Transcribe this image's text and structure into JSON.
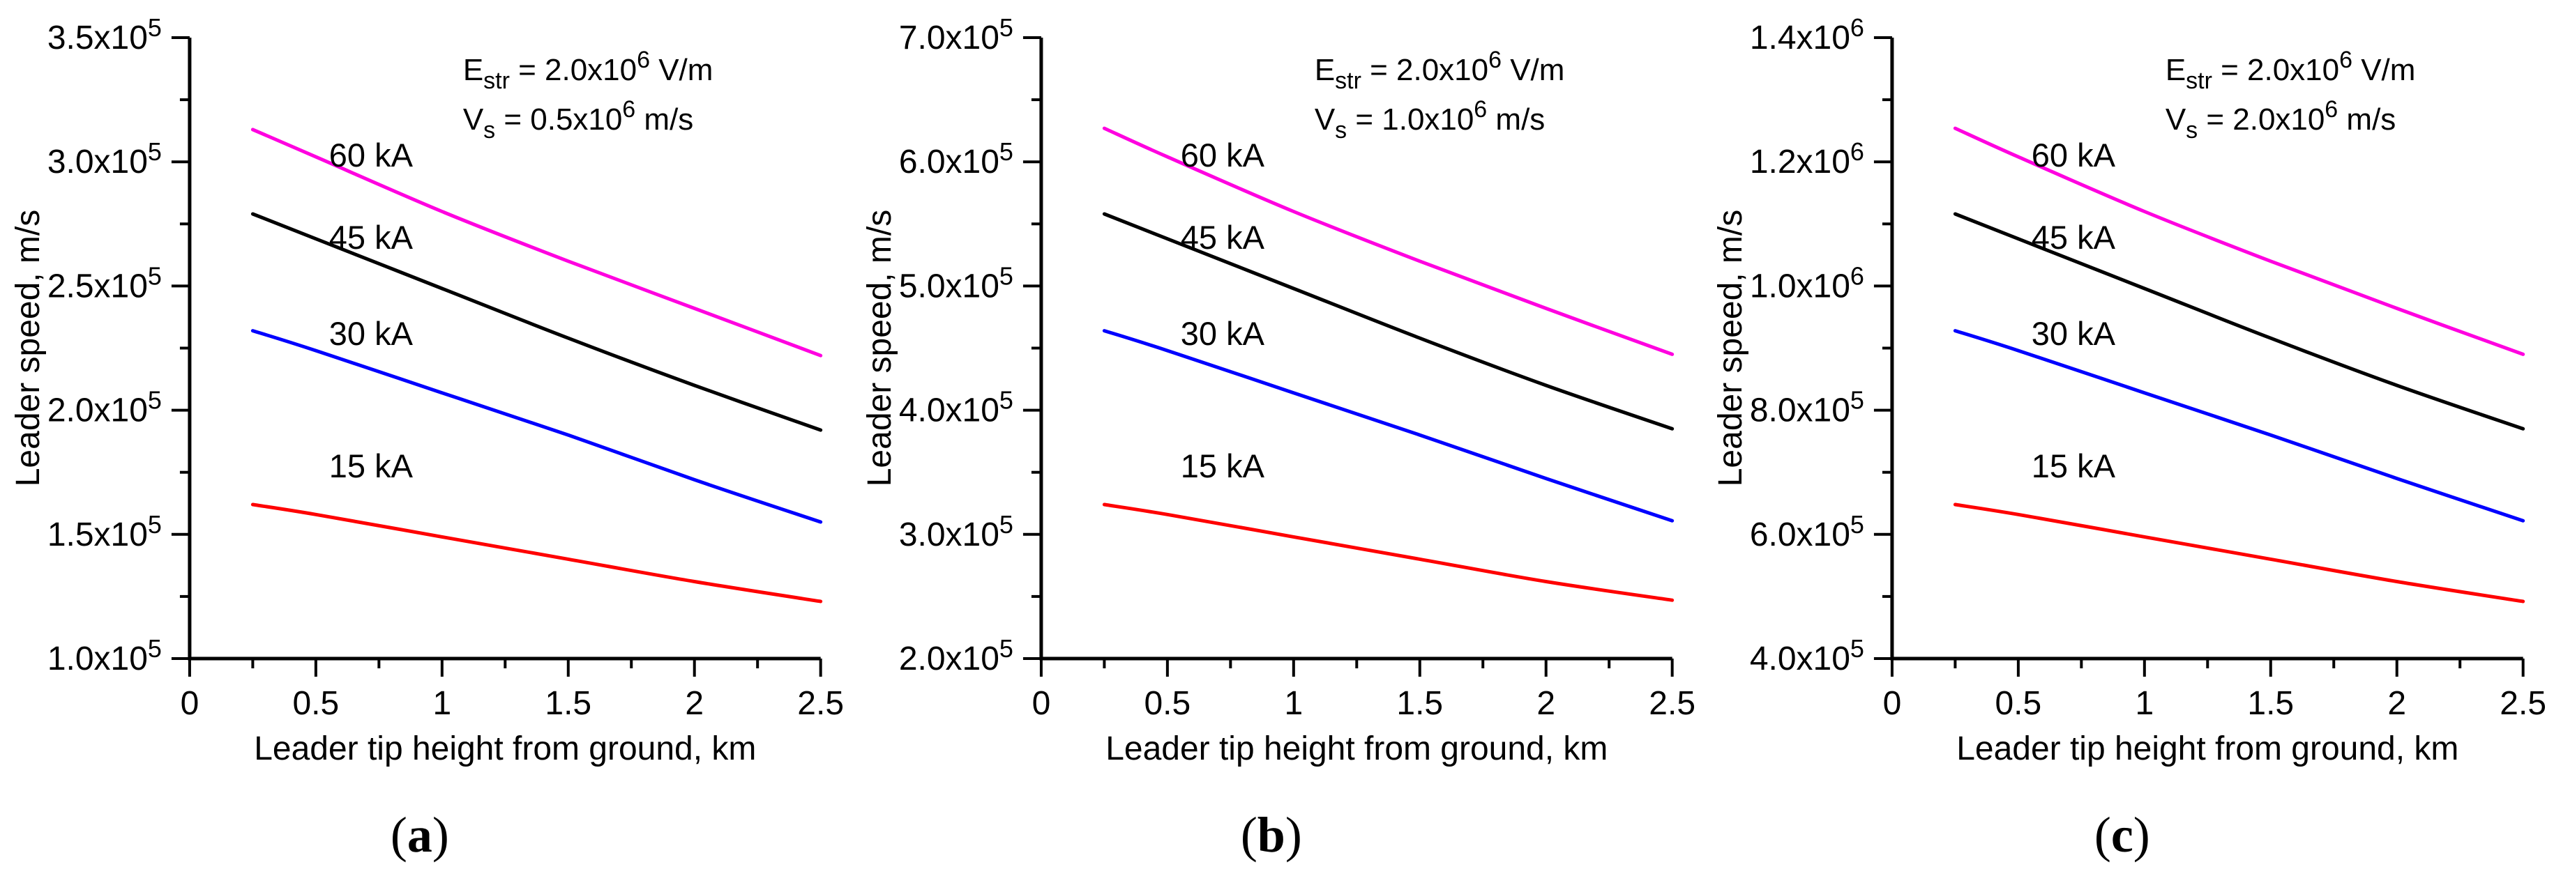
{
  "figure": {
    "background": "#ffffff",
    "text_color": "#000000"
  },
  "chart_data": [
    {
      "type": "line",
      "panel_label": "(a)",
      "xlabel": "Leader tip height from ground, km",
      "ylabel": "Leader speed, m/s",
      "xlim": [
        0,
        2.5
      ],
      "ylim": [
        100000,
        350000
      ],
      "grid": false,
      "legend_position": "inline-curve-labels",
      "xticks": [
        {
          "v": 0,
          "label": "0"
        },
        {
          "v": 0.5,
          "label": "0.5"
        },
        {
          "v": 1,
          "label": "1"
        },
        {
          "v": 1.5,
          "label": "1.5"
        },
        {
          "v": 2,
          "label": "2"
        },
        {
          "v": 2.5,
          "label": "2.5"
        }
      ],
      "yticks": [
        {
          "v": 350000,
          "label": "3.5x10^{5}"
        },
        {
          "v": 300000,
          "label": "3.0x10^{5}"
        },
        {
          "v": 250000,
          "label": "2.5x10^{5}"
        },
        {
          "v": 200000,
          "label": "2.0x10^{5}"
        },
        {
          "v": 150000,
          "label": "1.5x10^{5}"
        },
        {
          "v": 100000,
          "label": "1.0x10^{5}"
        }
      ],
      "annotation": [
        "E_{str} = 2.0x10^{6} V/m",
        "V_{s} = 0.5x10^{6} m/s"
      ],
      "x": [
        0.25,
        0.5,
        1.0,
        1.5,
        2.0,
        2.5
      ],
      "series": [
        {
          "name": "60 kA",
          "color": "#FF00E0",
          "values": [
            313000,
            302000,
            280000,
            260000,
            241000,
            222000
          ]
        },
        {
          "name": "45 kA",
          "color": "#000000",
          "values": [
            279000,
            269000,
            249000,
            229000,
            210000,
            192000
          ]
        },
        {
          "name": "30 kA",
          "color": "#0000FF",
          "values": [
            232000,
            224000,
            207000,
            190000,
            172000,
            155000
          ]
        },
        {
          "name": "15 kA",
          "color": "#FF0000",
          "values": [
            162000,
            158000,
            149000,
            140000,
            131000,
            123000
          ]
        }
      ]
    },
    {
      "type": "line",
      "panel_label": "(b)",
      "xlabel": "Leader tip height from ground, km",
      "ylabel": "Leader speed, m/s",
      "xlim": [
        0,
        2.5
      ],
      "ylim": [
        200000,
        700000
      ],
      "grid": false,
      "legend_position": "inline-curve-labels",
      "xticks": [
        {
          "v": 0,
          "label": "0"
        },
        {
          "v": 0.5,
          "label": "0.5"
        },
        {
          "v": 1,
          "label": "1"
        },
        {
          "v": 1.5,
          "label": "1.5"
        },
        {
          "v": 2,
          "label": "2"
        },
        {
          "v": 2.5,
          "label": "2.5"
        }
      ],
      "yticks": [
        {
          "v": 700000,
          "label": "7.0x10^{5}"
        },
        {
          "v": 600000,
          "label": "6.0x10^{5}"
        },
        {
          "v": 500000,
          "label": "5.0x10^{5}"
        },
        {
          "v": 400000,
          "label": "4.0x10^{5}"
        },
        {
          "v": 300000,
          "label": "3.0x10^{5}"
        },
        {
          "v": 200000,
          "label": "2.0x10^{5}"
        }
      ],
      "annotation": [
        "E_{str} = 2.0x10^{6} V/m",
        "V_{s} = 1.0x10^{6} m/s"
      ],
      "x": [
        0.25,
        0.5,
        1.0,
        1.5,
        2.0,
        2.5
      ],
      "series": [
        {
          "name": "60 kA",
          "color": "#FF00E0",
          "values": [
            627000,
            604000,
            560000,
            520000,
            482000,
            445000
          ]
        },
        {
          "name": "45 kA",
          "color": "#000000",
          "values": [
            558000,
            538000,
            498000,
            458000,
            420000,
            385000
          ]
        },
        {
          "name": "30 kA",
          "color": "#0000FF",
          "values": [
            464000,
            448000,
            414000,
            380000,
            345000,
            311000
          ]
        },
        {
          "name": "15 kA",
          "color": "#FF0000",
          "values": [
            324000,
            316000,
            298000,
            280000,
            262000,
            247000
          ]
        }
      ]
    },
    {
      "type": "line",
      "panel_label": "(c)",
      "xlabel": "Leader tip height from ground, km",
      "ylabel": "Leader speed, m/s",
      "xlim": [
        0,
        2.5
      ],
      "ylim": [
        400000,
        1400000
      ],
      "grid": false,
      "legend_position": "inline-curve-labels",
      "xticks": [
        {
          "v": 0,
          "label": "0"
        },
        {
          "v": 0.5,
          "label": "0.5"
        },
        {
          "v": 1,
          "label": "1"
        },
        {
          "v": 1.5,
          "label": "1.5"
        },
        {
          "v": 2,
          "label": "2"
        },
        {
          "v": 2.5,
          "label": "2.5"
        }
      ],
      "yticks": [
        {
          "v": 1400000,
          "label": "1.4x10^{6}"
        },
        {
          "v": 1200000,
          "label": "1.2x10^{6}"
        },
        {
          "v": 1000000,
          "label": "1.0x10^{6}"
        },
        {
          "v": 800000,
          "label": "8.0x10^{5}"
        },
        {
          "v": 600000,
          "label": "6.0x10^{5}"
        },
        {
          "v": 400000,
          "label": "4.0x10^{5}"
        }
      ],
      "annotation": [
        "E_{str} = 2.0x10^{6} V/m",
        "V_{s} = 2.0x10^{6} m/s"
      ],
      "x": [
        0.25,
        0.5,
        1.0,
        1.5,
        2.0,
        2.5
      ],
      "series": [
        {
          "name": "60 kA",
          "color": "#FF00E0",
          "values": [
            1254000,
            1208000,
            1120000,
            1040000,
            964000,
            890000
          ]
        },
        {
          "name": "45 kA",
          "color": "#000000",
          "values": [
            1116000,
            1076000,
            996000,
            916000,
            840000,
            770000
          ]
        },
        {
          "name": "30 kA",
          "color": "#0000FF",
          "values": [
            928000,
            896000,
            828000,
            760000,
            690000,
            622000
          ]
        },
        {
          "name": "15 kA",
          "color": "#FF0000",
          "values": [
            648000,
            632000,
            596000,
            560000,
            524000,
            492000
          ]
        }
      ]
    }
  ]
}
